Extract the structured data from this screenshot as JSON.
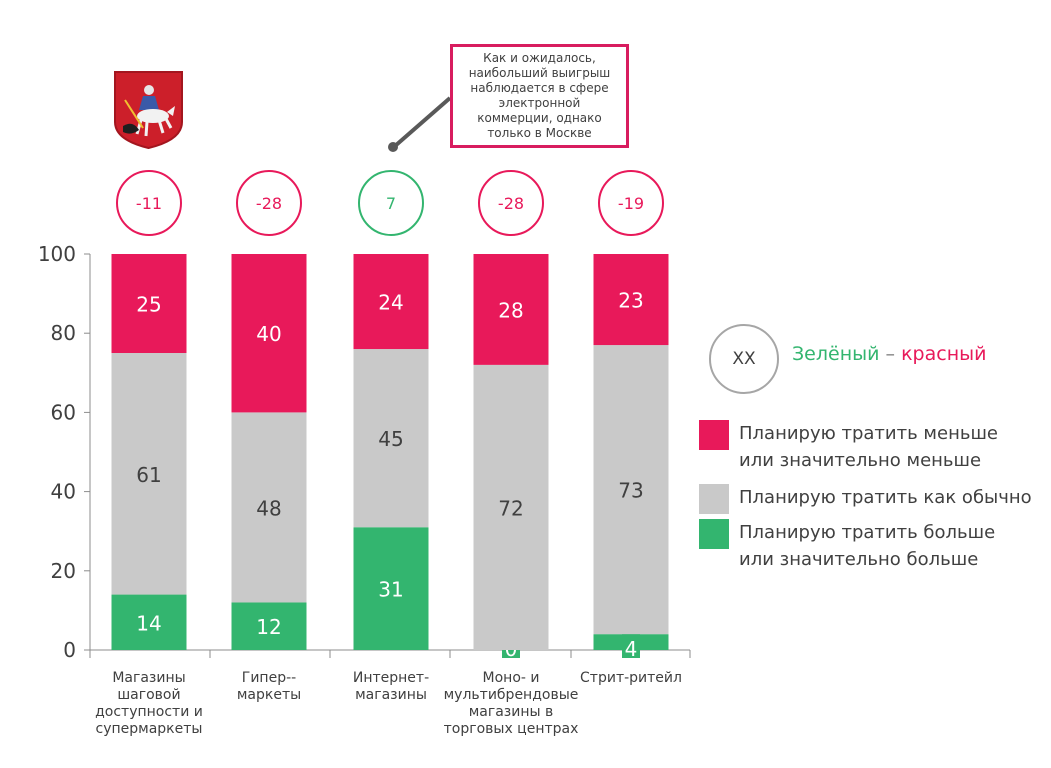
{
  "chart_data": {
    "type": "bar",
    "stacked": true,
    "categories": [
      "Магазины шаговой доступности и супермаркеты",
      "Гипер-- маркеты",
      "Интернет- магазины",
      "Моно- и мультибрендовые магазины в торговых центрах",
      "Стрит-ритейл"
    ],
    "series": [
      {
        "name": "Планирую тратить больше или значительно больше",
        "color": "#33b56f",
        "values": [
          14,
          12,
          31,
          0,
          4
        ]
      },
      {
        "name": "Планирую тратить как обычно",
        "color": "#c9c9c9",
        "values": [
          61,
          48,
          45,
          72,
          73
        ]
      },
      {
        "name": "Планирую тратить меньше или значительно меньше",
        "color": "#e8195a",
        "values": [
          25,
          40,
          24,
          28,
          23
        ]
      }
    ],
    "ylim": [
      0,
      100
    ],
    "yticks": [
      0,
      20,
      40,
      60,
      80,
      100
    ],
    "differences": [
      "-11",
      "-28",
      "7",
      "-28",
      "-19"
    ],
    "difference_signs": [
      "neg",
      "neg",
      "pos",
      "neg",
      "neg"
    ],
    "legend_position": "right",
    "grid": false
  },
  "category_labels": [
    "Магазины\nшаговой\nдоступности и\nсупермаркеты",
    "Гипер--\nмаркеты",
    "Интернет-\nмагазины",
    "Моно- и\nмультибрендовые\nмагазины в\nторговых центрах",
    "Стрит-ритейл"
  ],
  "callout": "Как и ожидалось, наибольший выигрыш наблюдается в сфере электронной коммерции, однако только в Москве",
  "key": {
    "circle": "XX",
    "green": "Зелёный",
    "sep": " – ",
    "red": "красный"
  },
  "legend": [
    {
      "text": "Планирую  тратить меньше\nили значительно  меньше",
      "color": "#e8195a"
    },
    {
      "text": "Планирую  тратить как обычно",
      "color": "#c9c9c9"
    },
    {
      "text": "Планирую  тратить больше\nили значительно  больше",
      "color": "#33b56f"
    }
  ],
  "emblem": "moscow-coat-of-arms"
}
